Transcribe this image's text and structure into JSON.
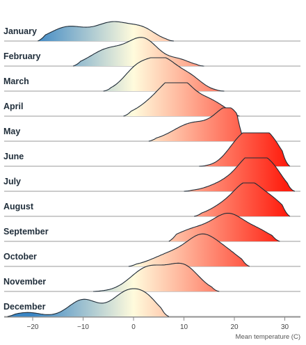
{
  "chart_data": {
    "type": "ridgeline",
    "xlabel": "Mean temperature (C)",
    "xlim": [
      -25,
      33
    ],
    "x_ticks": [
      -20,
      -10,
      0,
      10,
      20,
      30
    ],
    "color_scale": {
      "domain": [
        -20,
        0,
        30
      ],
      "colors": [
        "#3b86c4",
        "#fffbdc",
        "#ff1f10"
      ]
    },
    "series": [
      {
        "name": "January",
        "min": -19,
        "max": 8,
        "peaks": [
          [
            -13,
            0.42,
            3.5
          ],
          [
            -4,
            0.55,
            3.5
          ],
          [
            2,
            0.3,
            2.5
          ]
        ]
      },
      {
        "name": "February",
        "min": -12,
        "max": 14,
        "peaks": [
          [
            -5,
            0.5,
            3.5
          ],
          [
            2,
            0.78,
            3.0
          ],
          [
            9,
            0.18,
            2.2
          ]
        ]
      },
      {
        "name": "March",
        "min": -6,
        "max": 18,
        "peaks": [
          [
            1,
            0.72,
            2.8
          ],
          [
            6,
            0.82,
            2.6
          ],
          [
            11,
            0.42,
            2.5
          ]
        ]
      },
      {
        "name": "April",
        "min": -2,
        "max": 21,
        "peaks": [
          [
            5,
            0.5,
            3.5
          ],
          [
            9,
            0.85,
            2.8
          ],
          [
            15,
            0.45,
            3.0
          ]
        ]
      },
      {
        "name": "May",
        "min": 3,
        "max": 22,
        "peaks": [
          [
            12,
            0.55,
            4.0
          ],
          [
            19,
            0.9,
            2.6
          ]
        ]
      },
      {
        "name": "June",
        "min": 13,
        "max": 31,
        "peaks": [
          [
            21,
            0.65,
            2.6
          ],
          [
            25,
            0.85,
            2.6
          ],
          [
            28,
            0.35,
            2.0
          ]
        ]
      },
      {
        "name": "July",
        "min": 10,
        "max": 32,
        "peaks": [
          [
            19,
            0.3,
            3.5
          ],
          [
            24,
            1.0,
            2.8
          ],
          [
            28,
            0.4,
            2.0
          ]
        ]
      },
      {
        "name": "August",
        "min": 12,
        "max": 31,
        "peaks": [
          [
            18,
            0.3,
            3.0
          ],
          [
            23,
            0.95,
            2.8
          ],
          [
            28,
            0.35,
            2.2
          ]
        ]
      },
      {
        "name": "September",
        "min": 7,
        "max": 29,
        "peaks": [
          [
            12,
            0.35,
            3.5
          ],
          [
            19,
            0.78,
            3.2
          ],
          [
            25,
            0.25,
            2.5
          ]
        ]
      },
      {
        "name": "October",
        "min": -1,
        "max": 23,
        "peaks": [
          [
            8,
            0.4,
            4.0
          ],
          [
            14,
            0.8,
            3.0
          ],
          [
            19,
            0.3,
            2.5
          ]
        ]
      },
      {
        "name": "November",
        "min": -8,
        "max": 17,
        "peaks": [
          [
            3,
            0.72,
            3.5
          ],
          [
            10,
            0.72,
            3.0
          ]
        ]
      },
      {
        "name": "December",
        "min": -25,
        "max": 7,
        "peaks": [
          [
            -21,
            0.12,
            2.5
          ],
          [
            -10,
            0.5,
            2.8
          ],
          [
            -1,
            0.75,
            3.2
          ],
          [
            3,
            0.3,
            2.2
          ]
        ]
      }
    ]
  }
}
